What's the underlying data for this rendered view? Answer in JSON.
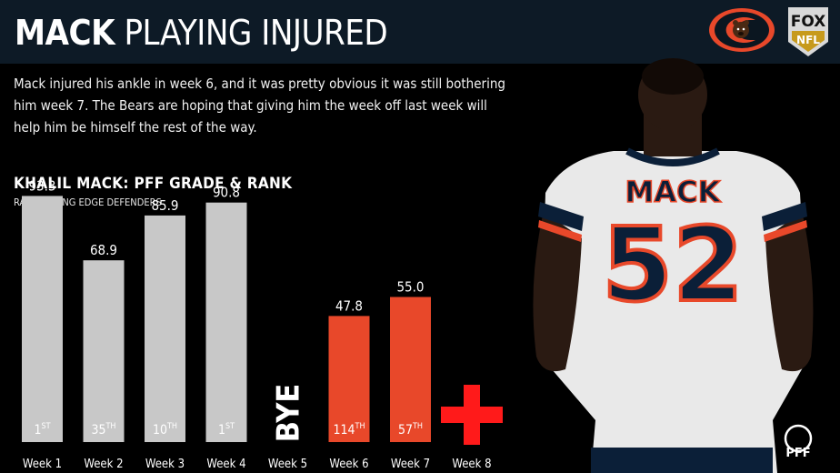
{
  "header": {
    "title_bold": "MACK",
    "title_rest": "PLAYING INJURED",
    "team_logo_icon": "bears-logo-icon",
    "network_logo_icon": "fox-nfl-logo-icon",
    "network_logo_text": [
      "FOX",
      "NFL"
    ]
  },
  "description": "Mack injured his ankle in week 6, and it was pretty obvious it was still bothering him week 7. The Bears are hoping that giving him the week off last week will help him be himself the rest of the way.",
  "player": {
    "name_on_jersey": "MACK",
    "number_on_jersey": "52",
    "pff_logo_text": "PFF"
  },
  "colors": {
    "healthy_bar": "#c8c8c8",
    "injured_bar": "#e8482a",
    "header_bg": "#0d1a26",
    "cross": "#ff1a1a"
  },
  "chart_data": {
    "type": "bar",
    "title": "KHALIL MACK: PFF GRADE & RANK",
    "subtitle": "RANK AMONG EDGE DEFENDERS",
    "categories": [
      "Week 1",
      "Week 2",
      "Week 3",
      "Week 4",
      "Week 5",
      "Week 6",
      "Week 7",
      "Week 8"
    ],
    "values": [
      93.3,
      68.9,
      85.9,
      90.8,
      null,
      47.8,
      55.0,
      null
    ],
    "value_labels": [
      "93.3",
      "68.9",
      "85.9",
      "90.8",
      "",
      "47.8",
      "55.0",
      ""
    ],
    "ranks": [
      {
        "num": "1",
        "suffix": "ST"
      },
      {
        "num": "35",
        "suffix": "TH"
      },
      {
        "num": "10",
        "suffix": "TH"
      },
      {
        "num": "1",
        "suffix": "ST"
      },
      null,
      {
        "num": "114",
        "suffix": "TH"
      },
      {
        "num": "57",
        "suffix": "TH"
      },
      null
    ],
    "status": [
      "healthy",
      "healthy",
      "healthy",
      "healthy",
      "bye",
      "injured",
      "injured",
      "out"
    ],
    "bye_label": "BYE",
    "out_marker_icon": "red-cross-icon",
    "ylim": [
      0,
      100
    ]
  }
}
